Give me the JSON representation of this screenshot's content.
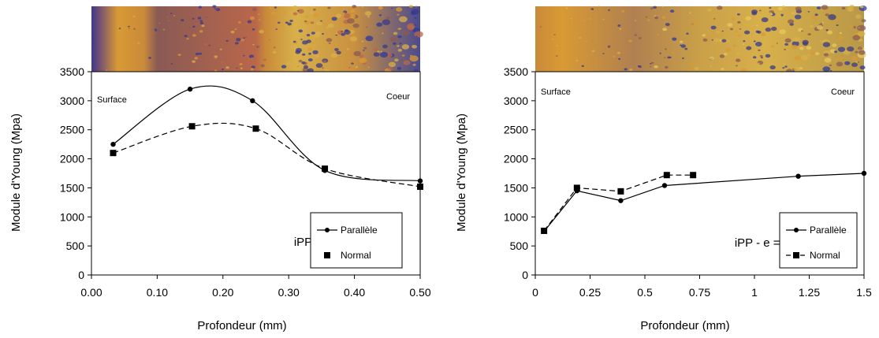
{
  "chart_data": [
    {
      "type": "line",
      "ylabel": "Module d'Young (Mpa)",
      "xlabel": "Profondeur (mm)",
      "xlim": [
        0,
        0.5
      ],
      "ylim": [
        0,
        3500
      ],
      "xticks": [
        0,
        0.1,
        0.2,
        0.3,
        0.4,
        0.5
      ],
      "xtick_labels": [
        "0.00",
        "0.10",
        "0.20",
        "0.30",
        "0.40",
        "0.50"
      ],
      "yticks": [
        0,
        500,
        1000,
        1500,
        2000,
        2500,
        3000,
        3500
      ],
      "ytick_labels": [
        "0",
        "500",
        "1000",
        "1500",
        "2000",
        "2500",
        "3000",
        "3500"
      ],
      "annotations": {
        "left": "Surface",
        "right": "Coeur",
        "condition": "iPP - e = 1mm"
      },
      "legend_position": "bottom-right",
      "micrograph_colors": [
        "#3b3a86",
        "#d99a34",
        "#8a5a55",
        "#b9674a",
        "#d8b04a",
        "#2d3a9a"
      ],
      "series": [
        {
          "name": "Parallèle",
          "style": "solid",
          "marker": "circle",
          "x": [
            0.033,
            0.15,
            0.245,
            0.355,
            0.5
          ],
          "y": [
            2250,
            3200,
            3000,
            1800,
            1620
          ]
        },
        {
          "name": "Normal",
          "style": "dashed",
          "marker": "square",
          "x": [
            0.033,
            0.153,
            0.25,
            0.355,
            0.5
          ],
          "y": [
            2100,
            2560,
            2520,
            1830,
            1520
          ]
        }
      ]
    },
    {
      "type": "line",
      "ylabel": "Module d'Young (Mpa)",
      "xlabel": "Profondeur (mm)",
      "xlim": [
        0,
        1.5
      ],
      "ylim": [
        0,
        3500
      ],
      "xticks": [
        0,
        0.25,
        0.5,
        0.75,
        1,
        1.25,
        1.5
      ],
      "xtick_labels": [
        "0",
        "0.25",
        "0.5",
        "0.75",
        "1",
        "1.25",
        "1.5"
      ],
      "yticks": [
        0,
        500,
        1000,
        1500,
        2000,
        2500,
        3000,
        3500
      ],
      "ytick_labels": [
        "0",
        "500",
        "1000",
        "1500",
        "2000",
        "2500",
        "3000",
        "3500"
      ],
      "annotations": {
        "left": "Surface",
        "right": "Coeur",
        "condition": "iPP - e = 3mm"
      },
      "legend_position": "bottom-right",
      "micrograph_colors": [
        "#d99a34",
        "#d8b04a",
        "#8a5a55",
        "#2d3a9a",
        "#e8c860",
        "#3b3a86"
      ],
      "series": [
        {
          "name": "Parallèle",
          "style": "solid",
          "marker": "circle",
          "x": [
            0.04,
            0.19,
            0.39,
            0.59,
            1.2,
            1.5
          ],
          "y": [
            750,
            1450,
            1280,
            1540,
            1700,
            1750
          ]
        },
        {
          "name": "Normal",
          "style": "dashed",
          "marker": "square",
          "x": [
            0.04,
            0.19,
            0.39,
            0.6,
            0.72
          ],
          "y": [
            760,
            1500,
            1440,
            1720,
            1720
          ]
        }
      ]
    }
  ]
}
